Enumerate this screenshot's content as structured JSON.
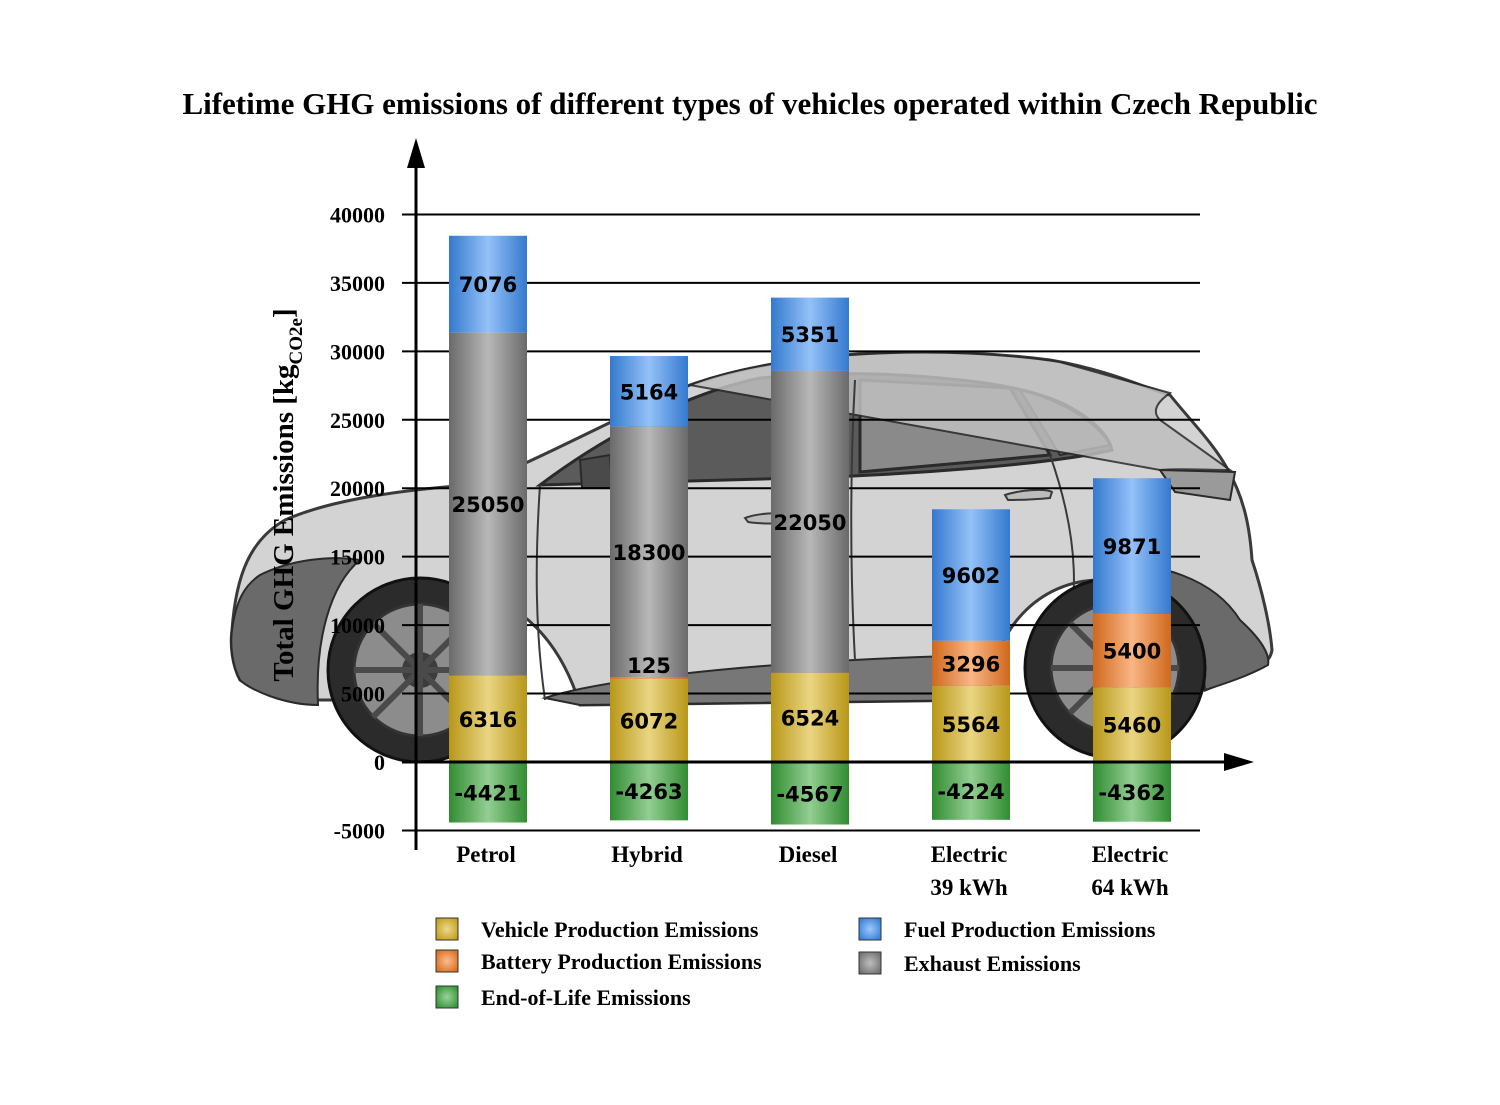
{
  "chart_data": {
    "type": "bar",
    "stacked": true,
    "title": "Lifetime GHG emissions of different types of vehicles operated within Czech Republic",
    "ylabel": "Total GHG Emissions [kg",
    "ylabel_sub": "CO2e",
    "ylabel_close": "]",
    "xlabel": "",
    "ylim": [
      -5000,
      40000
    ],
    "yticks": [
      -5000,
      0,
      5000,
      10000,
      15000,
      20000,
      25000,
      30000,
      35000,
      40000
    ],
    "grid": true,
    "legend_position": "bottom",
    "categories": [
      [
        "Petrol"
      ],
      [
        "Hybrid"
      ],
      [
        "Diesel"
      ],
      [
        "Electric",
        "39 kWh"
      ],
      [
        "Electric",
        "64 kWh"
      ]
    ],
    "series": [
      {
        "name": "End-of-Life Emissions",
        "color": "#3aa53a",
        "values": [
          -4421,
          -4263,
          -4567,
          -4224,
          -4362
        ]
      },
      {
        "name": "Vehicle Production Emissions",
        "color": "#d9b21c",
        "values": [
          6316,
          6072,
          6524,
          5564,
          5460
        ]
      },
      {
        "name": "Battery Production Emissions",
        "color": "#f47a22",
        "values": [
          0,
          125,
          0,
          3296,
          5400
        ]
      },
      {
        "name": "Exhaust Emissions",
        "color": "#7d7d7d",
        "values": [
          25050,
          18300,
          22050,
          0,
          0
        ]
      },
      {
        "name": "Fuel Production Emissions",
        "color": "#3d8ef2",
        "values": [
          7076,
          5164,
          5351,
          9602,
          9871
        ]
      }
    ],
    "legend_order": [
      1,
      4,
      2,
      3,
      0
    ],
    "background_image": "car-side-silhouette"
  }
}
